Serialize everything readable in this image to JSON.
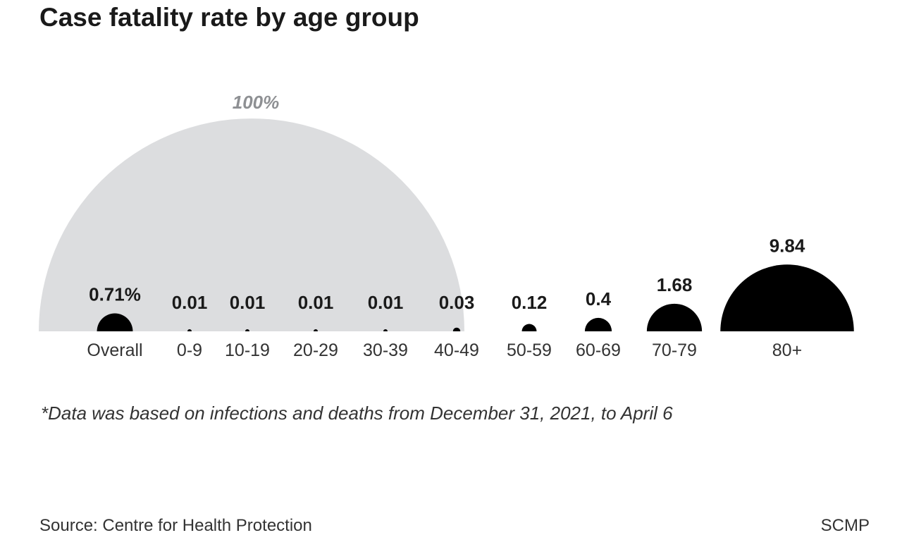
{
  "chart_data": {
    "type": "semicircle-area",
    "title": "Case fatality rate by age group",
    "reference": {
      "label": "100%",
      "value": 100
    },
    "categories": [
      "Overall",
      "0-9",
      "10-19",
      "20-29",
      "30-39",
      "40-49",
      "50-59",
      "60-69",
      "70-79",
      "80+"
    ],
    "values": [
      0.71,
      0.01,
      0.01,
      0.01,
      0.01,
      0.03,
      0.12,
      0.4,
      1.68,
      9.84
    ],
    "value_labels": [
      "0.71%",
      "0.01",
      "0.01",
      "0.01",
      "0.01",
      "0.03",
      "0.12",
      "0.4",
      "1.68",
      "9.84"
    ],
    "footnote": "*Data was based on infections and deaths from December 31, 2021, to April 6",
    "colors": {
      "reference": "#dcdddf",
      "mark": "#000000",
      "reference_label": "#8e9093",
      "text": "#1a1a1a"
    }
  },
  "footer": {
    "source": "Source: Centre for Health Protection",
    "brand": "SCMP"
  }
}
